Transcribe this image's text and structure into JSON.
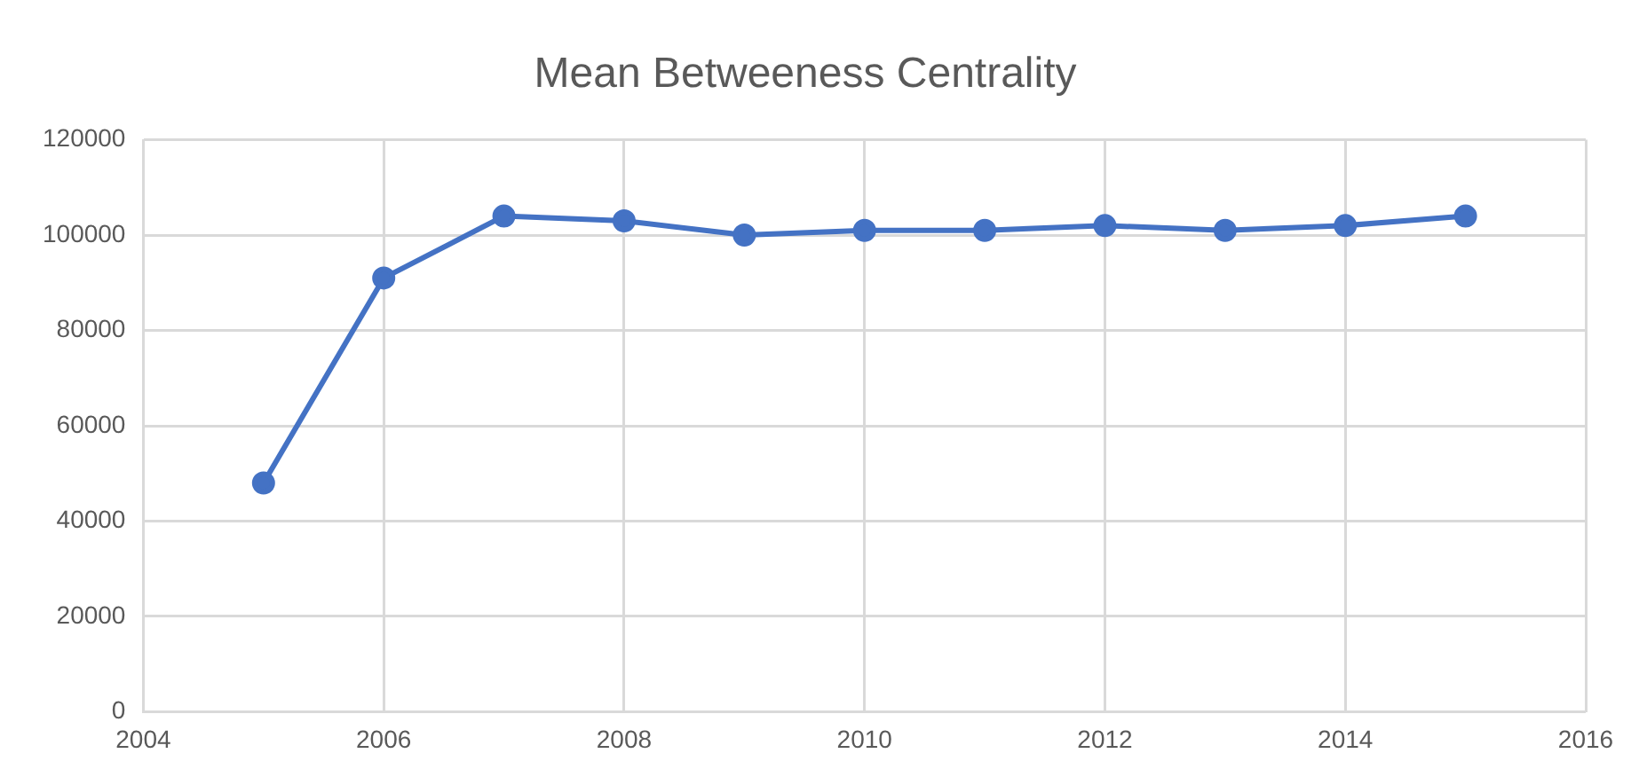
{
  "chart_data": {
    "type": "line",
    "title": "Mean Betweeness Centrality",
    "x": [
      2005,
      2006,
      2007,
      2008,
      2009,
      2010,
      2011,
      2012,
      2013,
      2014,
      2015
    ],
    "series": [
      {
        "color": "#4472c4",
        "values": [
          48000,
          91000,
          104000,
          103000,
          100000,
          101000,
          101000,
          102000,
          101000,
          102000,
          104000
        ]
      }
    ],
    "xlim": [
      2004,
      2016
    ],
    "xticks": [
      2004,
      2006,
      2008,
      2010,
      2012,
      2014,
      2016
    ],
    "ylim": [
      0,
      120000
    ],
    "yticks": [
      0,
      20000,
      40000,
      60000,
      80000,
      100000,
      120000
    ],
    "grid": true,
    "legend": false,
    "marker": "circle",
    "line_style": "solid"
  }
}
